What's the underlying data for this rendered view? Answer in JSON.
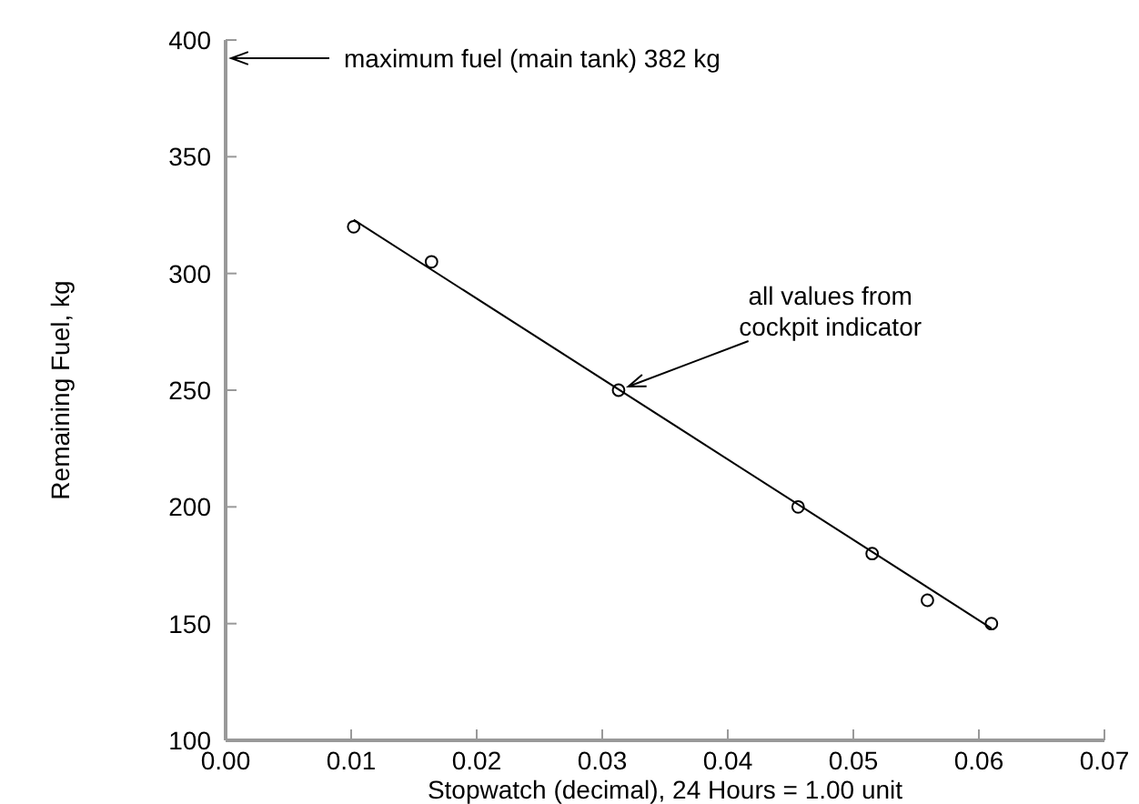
{
  "chart_data": {
    "type": "scatter",
    "xlabel": "Stopwatch (decimal), 24 Hours = 1.00 unit",
    "ylabel": "Remaining Fuel, kg",
    "xlim": [
      0,
      0.07
    ],
    "xticks": [
      {
        "value": 0,
        "label": "0.00"
      },
      {
        "value": 0.01,
        "label": "0.01"
      },
      {
        "value": 0.02,
        "label": "0.02"
      },
      {
        "value": 0.03,
        "label": "0.03"
      },
      {
        "value": 0.04,
        "label": "0.04"
      },
      {
        "value": 0.05,
        "label": "0.05"
      },
      {
        "value": 0.06,
        "label": "0.06"
      },
      {
        "value": 0.07,
        "label": "0.07"
      }
    ],
    "ylim": [
      100,
      400
    ],
    "yticks": [
      100,
      150,
      200,
      250,
      300,
      350,
      400
    ],
    "series": [
      {
        "color": "#000000",
        "marker": "circle",
        "x": [
          0.0102,
          0.0164,
          0.0313,
          0.0456,
          0.0515,
          0.0559,
          0.061
        ],
        "values": [
          320,
          305,
          250,
          200,
          180,
          160,
          150
        ]
      },
      {
        "type": "line",
        "color": "#000000",
        "marker": "none",
        "line_style": "solid",
        "x": [
          0.0102,
          0.061
        ],
        "values": [
          323,
          148
        ]
      }
    ],
    "annotations": [
      "maximum fuel (main tank) 382 kg",
      {
        "text": "all values from cockpit indicator",
        "x": 0.0315,
        "y": 250
      }
    ]
  }
}
